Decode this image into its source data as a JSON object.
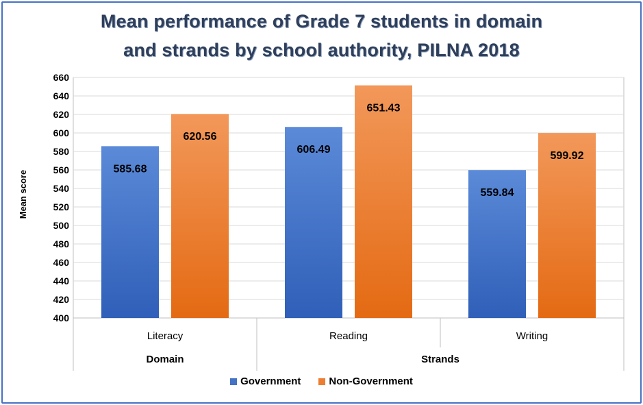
{
  "chart_data": {
    "type": "bar",
    "title_lines": [
      "Mean performance of Grade 7 students in domain",
      "and strands by school authority, PILNA 2018"
    ],
    "ylabel": "Mean score",
    "ylim": [
      400,
      660
    ],
    "yticks": [
      400,
      420,
      440,
      460,
      480,
      500,
      520,
      540,
      560,
      580,
      600,
      620,
      640,
      660
    ],
    "grid": true,
    "categories": [
      "Literacy",
      "Reading",
      "Writing"
    ],
    "groups": [
      {
        "label": "Domain",
        "span": 1
      },
      {
        "label": "Strands",
        "span": 2
      }
    ],
    "series": [
      {
        "name": "Government",
        "color": "#4472c4",
        "values": [
          585.68,
          606.49,
          559.84
        ],
        "labels": [
          "585.68",
          "606.49",
          "559.84"
        ]
      },
      {
        "name": "Non-Government",
        "color": "#ed7d31",
        "values": [
          620.56,
          651.43,
          599.92
        ],
        "labels": [
          "620.56",
          "651.43",
          "599.92"
        ]
      }
    ],
    "legend_position": "bottom"
  }
}
